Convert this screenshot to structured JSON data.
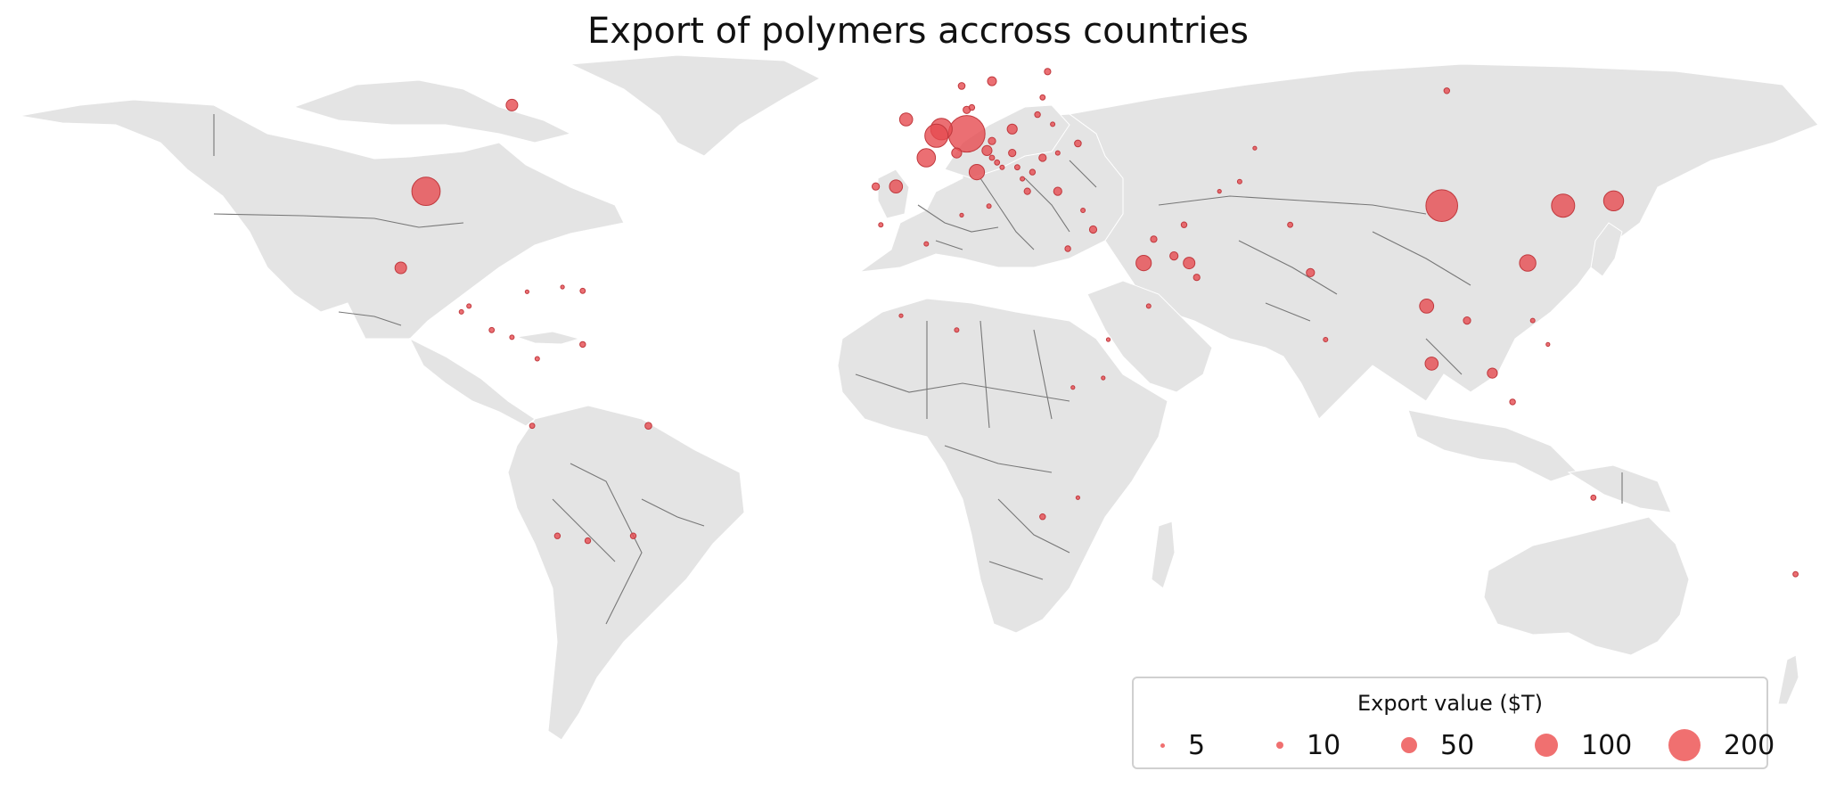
{
  "title": "Export of polymers accross countries",
  "legend": {
    "title": "Export value ($T)",
    "items": [
      {
        "label": "5",
        "value": 5
      },
      {
        "label": "10",
        "value": 10
      },
      {
        "label": "50",
        "value": 50
      },
      {
        "label": "100",
        "value": 100
      },
      {
        "label": "200",
        "value": 200
      }
    ]
  },
  "colors": {
    "land": "#e4e4e4",
    "border": "#777777",
    "bubble": "#e64b50",
    "legend_marker": "#f07070"
  },
  "chart_data": {
    "type": "scatter",
    "projection": "equirectangular",
    "size_variable": "Export value ($T)",
    "points": [
      {
        "lon": -97,
        "lat": 39,
        "value": 120
      },
      {
        "lon": 104,
        "lat": 36,
        "value": 150
      },
      {
        "lon": 10,
        "lat": 51,
        "value": 200
      },
      {
        "lon": 5,
        "lat": 52,
        "value": 70
      },
      {
        "lon": 4,
        "lat": 50.6,
        "value": 80
      },
      {
        "lon": 2,
        "lat": 46,
        "value": 50
      },
      {
        "lon": 128,
        "lat": 36,
        "value": 80
      },
      {
        "lon": 138,
        "lat": 37,
        "value": 60
      },
      {
        "lon": 121,
        "lat": 24,
        "value": 40
      },
      {
        "lon": -4,
        "lat": 40,
        "value": 25
      },
      {
        "lon": 12,
        "lat": 43,
        "value": 35
      },
      {
        "lon": -102,
        "lat": 23,
        "value": 20
      },
      {
        "lon": 45,
        "lat": 24,
        "value": 35
      },
      {
        "lon": 101,
        "lat": 15,
        "value": 30
      },
      {
        "lon": 102,
        "lat": 3,
        "value": 25
      },
      {
        "lon": 114,
        "lat": 1,
        "value": 15
      },
      {
        "lon": 54,
        "lat": 24,
        "value": 20
      },
      {
        "lon": -2,
        "lat": 54,
        "value": 25
      },
      {
        "lon": 19,
        "lat": 52,
        "value": 15
      },
      {
        "lon": 15,
        "lat": 62,
        "value": 12
      },
      {
        "lon": -80,
        "lat": 57,
        "value": 20
      },
      {
        "lon": 14,
        "lat": 47.5,
        "value": 15
      },
      {
        "lon": 8,
        "lat": 47,
        "value": 15
      },
      {
        "lon": -53,
        "lat": -10,
        "value": 7
      },
      {
        "lon": 51,
        "lat": 25.5,
        "value": 10
      },
      {
        "lon": 35,
        "lat": 31,
        "value": 8
      },
      {
        "lon": 28,
        "lat": 39,
        "value": 10
      },
      {
        "lon": 78,
        "lat": 22,
        "value": 10
      },
      {
        "lon": 10,
        "lat": 56,
        "value": 8
      },
      {
        "lon": -8,
        "lat": 40,
        "value": 8
      },
      {
        "lon": 25,
        "lat": 46,
        "value": 8
      },
      {
        "lon": 19,
        "lat": 47,
        "value": 8
      },
      {
        "lon": 15,
        "lat": 49.5,
        "value": 8
      },
      {
        "lon": 9,
        "lat": 61,
        "value": 7
      },
      {
        "lon": 32,
        "lat": 49,
        "value": 7
      },
      {
        "lon": 47,
        "lat": 29,
        "value": 6
      },
      {
        "lon": 55.5,
        "lat": 21,
        "value": 6
      },
      {
        "lon": 30,
        "lat": 27,
        "value": 5
      },
      {
        "lon": 109,
        "lat": 12,
        "value": 8
      },
      {
        "lon": 26,
        "lat": 64,
        "value": 6
      },
      {
        "lon": 105,
        "lat": 60,
        "value": 5
      },
      {
        "lon": 74,
        "lat": 32,
        "value": 4
      },
      {
        "lon": 53,
        "lat": 32,
        "value": 5
      },
      {
        "lon": 118,
        "lat": -5,
        "value": 5
      },
      {
        "lon": 25,
        "lat": -29,
        "value": 5
      },
      {
        "lon": -65,
        "lat": -34,
        "value": 5
      },
      {
        "lon": -71,
        "lat": -33,
        "value": 5
      },
      {
        "lon": -56,
        "lat": -33,
        "value": 5
      },
      {
        "lon": 174,
        "lat": -41,
        "value": 4
      },
      {
        "lon": 134,
        "lat": -25,
        "value": 4
      },
      {
        "lon": -76,
        "lat": -10,
        "value": 4
      },
      {
        "lon": -66,
        "lat": 7,
        "value": 5
      },
      {
        "lon": -84,
        "lat": 10,
        "value": 4
      },
      {
        "lon": -88.5,
        "lat": 15,
        "value": 3
      },
      {
        "lon": -90,
        "lat": 13.8,
        "value": 3
      },
      {
        "lon": -66,
        "lat": 18.2,
        "value": 4
      },
      {
        "lon": -80,
        "lat": 8.5,
        "value": 3
      },
      {
        "lon": 11,
        "lat": 56.5,
        "value": 5
      },
      {
        "lon": 24,
        "lat": 55,
        "value": 5
      },
      {
        "lon": 25,
        "lat": 58.6,
        "value": 4
      },
      {
        "lon": 22,
        "lat": 39,
        "value": 6
      },
      {
        "lon": 23,
        "lat": 43,
        "value": 5
      },
      {
        "lon": 16,
        "lat": 45,
        "value": 4
      },
      {
        "lon": 15,
        "lat": 46,
        "value": 4
      },
      {
        "lon": 17,
        "lat": 44,
        "value": 3
      },
      {
        "lon": 20,
        "lat": 44,
        "value": 4
      },
      {
        "lon": 28,
        "lat": 47,
        "value": 3
      },
      {
        "lon": 27,
        "lat": 53,
        "value": 3
      },
      {
        "lon": 21,
        "lat": 41.6,
        "value": 3
      },
      {
        "lon": 33,
        "lat": 35,
        "value": 3
      },
      {
        "lon": 14.4,
        "lat": 35.9,
        "value": 3
      },
      {
        "lon": 46,
        "lat": 15,
        "value": 3
      },
      {
        "lon": 38,
        "lat": 8,
        "value": 2
      },
      {
        "lon": 37,
        "lat": 0,
        "value": 2
      },
      {
        "lon": 67,
        "lat": 48,
        "value": 2
      },
      {
        "lon": 64,
        "lat": 41,
        "value": 3
      },
      {
        "lon": 60,
        "lat": 39,
        "value": 2
      },
      {
        "lon": 81,
        "lat": 8,
        "value": 3
      },
      {
        "lon": 122,
        "lat": 12,
        "value": 3
      },
      {
        "lon": 125,
        "lat": 7,
        "value": 2
      },
      {
        "lon": -3,
        "lat": 13,
        "value": 2
      },
      {
        "lon": 8,
        "lat": 10,
        "value": 3
      },
      {
        "lon": 2,
        "lat": 28,
        "value": 3
      },
      {
        "lon": -7,
        "lat": 32,
        "value": 3
      },
      {
        "lon": 9,
        "lat": 34,
        "value": 2
      },
      {
        "lon": 31,
        "lat": -2,
        "value": 2
      },
      {
        "lon": 32,
        "lat": -25,
        "value": 2
      },
      {
        "lon": -75,
        "lat": 4,
        "value": 3
      },
      {
        "lon": -77,
        "lat": 18,
        "value": 2
      },
      {
        "lon": -70,
        "lat": 19,
        "value": 2
      }
    ]
  }
}
